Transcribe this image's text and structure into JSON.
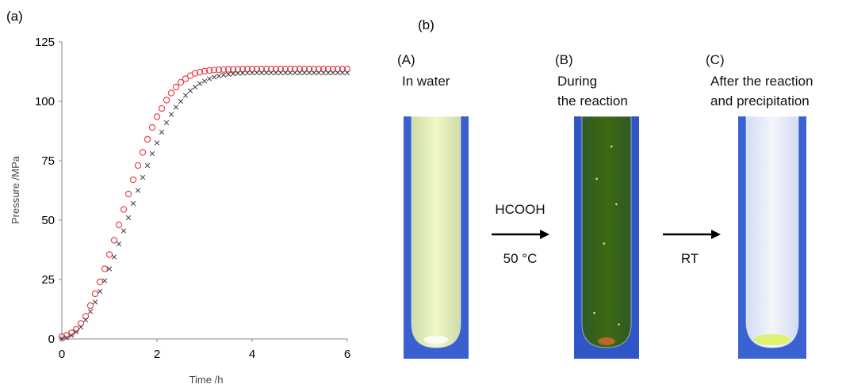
{
  "figure": {
    "panel_a_label": "(a)",
    "panel_b_label": "(b)"
  },
  "chart_data": {
    "type": "scatter",
    "title": "",
    "xlabel": "Time /h",
    "ylabel": "Pressure /MPa",
    "xlim": [
      0,
      6
    ],
    "ylim": [
      0,
      125
    ],
    "x_ticks": [
      0,
      2,
      4,
      6
    ],
    "y_ticks": [
      0,
      25,
      50,
      75,
      100,
      125
    ],
    "x_tick_labels": [
      "0",
      "2",
      "4",
      "6"
    ],
    "y_tick_labels": [
      "0",
      "25",
      "50",
      "75",
      "100",
      "125"
    ],
    "grid": false,
    "legend": "none",
    "series": [
      {
        "marker": "circle-open",
        "color": "#e8484f",
        "x": [
          0.0,
          0.1,
          0.2,
          0.3,
          0.4,
          0.5,
          0.6,
          0.7,
          0.8,
          0.9,
          1.0,
          1.1,
          1.2,
          1.3,
          1.4,
          1.5,
          1.6,
          1.7,
          1.8,
          1.9,
          2.0,
          2.1,
          2.2,
          2.3,
          2.4,
          2.5,
          2.6,
          2.7,
          2.8,
          2.9,
          3.0,
          3.1,
          3.2,
          3.3,
          3.4,
          3.5,
          3.6,
          3.7,
          3.8,
          3.9,
          4.0,
          4.1,
          4.2,
          4.3,
          4.4,
          4.5,
          4.6,
          4.7,
          4.8,
          4.9,
          5.0,
          5.1,
          5.2,
          5.3,
          5.4,
          5.5,
          5.6,
          5.7,
          5.8,
          5.9,
          6.0
        ],
        "y": [
          1,
          1.5,
          2.5,
          4,
          6.5,
          9.5,
          14,
          19,
          24,
          29.5,
          35.5,
          41.5,
          48,
          54.5,
          61,
          67,
          73,
          78.5,
          84,
          89,
          93.5,
          97,
          100.5,
          103.5,
          106,
          108,
          109.5,
          110.8,
          111.8,
          112.3,
          112.7,
          113,
          113.2,
          113.3,
          113.4,
          113.5,
          113.5,
          113.5,
          113.6,
          113.6,
          113.6,
          113.6,
          113.6,
          113.6,
          113.6,
          113.6,
          113.6,
          113.6,
          113.6,
          113.6,
          113.6,
          113.6,
          113.6,
          113.6,
          113.6,
          113.6,
          113.6,
          113.6,
          113.6,
          113.6,
          113.6
        ]
      },
      {
        "marker": "cross",
        "color": "#333333",
        "x": [
          0.0,
          0.1,
          0.2,
          0.3,
          0.4,
          0.5,
          0.6,
          0.7,
          0.8,
          0.9,
          1.0,
          1.1,
          1.2,
          1.3,
          1.4,
          1.5,
          1.6,
          1.7,
          1.8,
          1.9,
          2.0,
          2.1,
          2.2,
          2.3,
          2.4,
          2.5,
          2.6,
          2.7,
          2.8,
          2.9,
          3.0,
          3.1,
          3.2,
          3.3,
          3.4,
          3.5,
          3.6,
          3.7,
          3.8,
          3.9,
          4.0,
          4.1,
          4.2,
          4.3,
          4.4,
          4.5,
          4.6,
          4.7,
          4.8,
          4.9,
          5.0,
          5.1,
          5.2,
          5.3,
          5.4,
          5.5,
          5.6,
          5.7,
          5.8,
          5.9,
          6.0
        ],
        "y": [
          0,
          0.5,
          1.5,
          3,
          5,
          8,
          11.5,
          15.5,
          20,
          24.5,
          29.5,
          34.5,
          40,
          45.5,
          51,
          57,
          62.5,
          68,
          73,
          78,
          82.5,
          87,
          91,
          94.5,
          97.5,
          100,
          102.5,
          104.5,
          106,
          107.5,
          108.5,
          109.5,
          110.2,
          110.7,
          111.1,
          111.4,
          111.6,
          111.8,
          111.9,
          112,
          112,
          112,
          112,
          112,
          112,
          112,
          112,
          112,
          112,
          112,
          112,
          112,
          112,
          112,
          112,
          112,
          112,
          112,
          112,
          112,
          112
        ]
      }
    ]
  },
  "photos": [
    {
      "letter": "(A)",
      "caption_lines": [
        "In water"
      ],
      "liquid": "#e6f2a2",
      "tube_color": "#f2f7c8",
      "bg": "#3a5fcf"
    },
    {
      "letter": "(B)",
      "caption_lines": [
        "During",
        "the reaction"
      ],
      "liquid": "#2f5a0a",
      "tube_color": "#3d6a10",
      "bg": "#2f56c4"
    },
    {
      "letter": "(C)",
      "caption_lines": [
        "After the reaction",
        "and precipitation"
      ],
      "liquid": "#eef2f8",
      "tube_color": "#f3f5fa",
      "bg": "#3a62d0"
    }
  ],
  "arrows": [
    {
      "top": "HCOOH",
      "bottom": "50 °C"
    },
    {
      "top": "",
      "bottom": "RT"
    }
  ]
}
